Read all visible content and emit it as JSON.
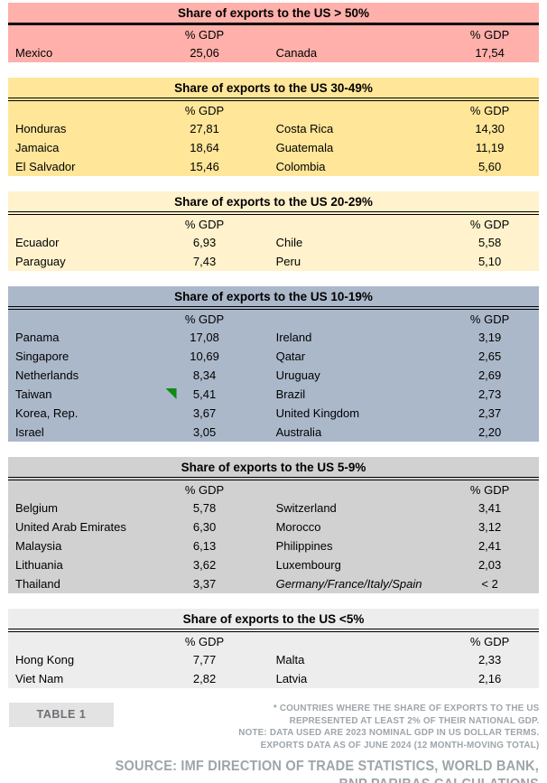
{
  "chart_data": {
    "type": "table",
    "col_header": "% GDP",
    "sections": [
      {
        "title": "Share of exports to the US > 50%",
        "bg_color": "#FFB0AA",
        "col_header": "% GDP",
        "rows": [
          {
            "country_left": "Mexico",
            "value_left": "25,06",
            "country_right": "Canada",
            "value_right": "17,54"
          }
        ]
      },
      {
        "title": "Share of exports to the US 30-49%",
        "bg_color": "#FFE699",
        "col_header": "% GDP",
        "rows": [
          {
            "country_left": "Honduras",
            "value_left": "27,81",
            "country_right": "Costa Rica",
            "value_right": "14,30"
          },
          {
            "country_left": "Jamaica",
            "value_left": "18,64",
            "country_right": "Guatemala",
            "value_right": "11,19"
          },
          {
            "country_left": "El Salvador",
            "value_left": "15,46",
            "country_right": "Colombia",
            "value_right": "5,60"
          }
        ]
      },
      {
        "title": "Share of exports to the US 20-29%",
        "bg_color": "#FFF2CC",
        "col_header": "% GDP",
        "rows": [
          {
            "country_left": "Ecuador",
            "value_left": "6,93",
            "country_right": "Chile",
            "value_right": "5,58"
          },
          {
            "country_left": "Paraguay",
            "value_left": "7,43",
            "country_right": "Peru",
            "value_right": "5,10"
          }
        ]
      },
      {
        "title": "Share of exports to the US 10-19%",
        "bg_color": "#ABB8CA",
        "col_header": "% GDP",
        "rows": [
          {
            "country_left": "Panama",
            "value_left": "17,08",
            "country_right": "Ireland",
            "value_right": "3,19"
          },
          {
            "country_left": "Singapore",
            "value_left": "10,69",
            "country_right": "Qatar",
            "value_right": "2,65"
          },
          {
            "country_left": "Netherlands",
            "value_left": "8,34",
            "country_right": "Uruguay",
            "value_right": "2,69"
          },
          {
            "country_left": "Taiwan",
            "value_left": "5,41",
            "country_right": "Brazil",
            "value_right": "2,73",
            "marker_left": "green-flag"
          },
          {
            "country_left": "Korea, Rep.",
            "value_left": "3,67",
            "country_right": "United Kingdom",
            "value_right": "2,37"
          },
          {
            "country_left": "Israel",
            "value_left": "3,05",
            "country_right": "Australia",
            "value_right": "2,20"
          }
        ]
      },
      {
        "title": "Share of exports to the US 5-9%",
        "bg_color": "#D1D1D1",
        "col_header": "% GDP",
        "rows": [
          {
            "country_left": "Belgium",
            "value_left": "5,78",
            "country_right": "Switzerland",
            "value_right": "3,41"
          },
          {
            "country_left": "United Arab Emirates",
            "value_left": "6,30",
            "country_right": "Morocco",
            "value_right": "3,12"
          },
          {
            "country_left": "Malaysia",
            "value_left": "6,13",
            "country_right": "Philippines",
            "value_right": "2,41"
          },
          {
            "country_left": "Lithuania",
            "value_left": "3,62",
            "country_right": "Luxembourg",
            "value_right": "2,03"
          },
          {
            "country_left": "Thailand",
            "value_left": "3,37",
            "country_right": "Germany/France/Italy/Spain",
            "value_right": "< 2",
            "italic_right": true
          }
        ]
      },
      {
        "title": "Share of exports to the US <5%",
        "bg_color": "#EDEDED",
        "col_header": "% GDP",
        "rows": [
          {
            "country_left": "Hong Kong",
            "value_left": "7,77",
            "country_right": "Malta",
            "value_right": "2,33"
          },
          {
            "country_left": "Viet Nam",
            "value_left": "2,82",
            "country_right": "Latvia",
            "value_right": "2,16"
          }
        ]
      }
    ]
  },
  "footer": {
    "table_label": "TABLE 1",
    "footnotes": [
      "* COUNTRIES WHERE THE SHARE OF EXPORTS TO THE US",
      "REPRESENTED AT LEAST 2% OF THEIR NATIONAL GDP.",
      "NOTE: DATA USED ARE 2023 NOMINAL GDP IN US DOLLAR TERMS.",
      "EXPORTS DATA AS OF JUNE 2024 (12 MONTH-MOVING TOTAL)"
    ],
    "source_lines": [
      "SOURCE: IMF DIRECTION OF TRADE STATISTICS, WORLD BANK,",
      "BNP PARIBAS CALCULATIONS"
    ]
  },
  "colors": {
    "band_gt50": "#FFB0AA",
    "band_30_49": "#FFE699",
    "band_20_29": "#FFF2CC",
    "band_10_19": "#ABB8CA",
    "band_5_9": "#D1D1D1",
    "band_lt5": "#EDEDED",
    "green_flag_marker": "#128A12",
    "footer_text": "#9EA5AA",
    "table_label_bg": "#E3E3E3",
    "table_label_text": "#6E6E74"
  }
}
